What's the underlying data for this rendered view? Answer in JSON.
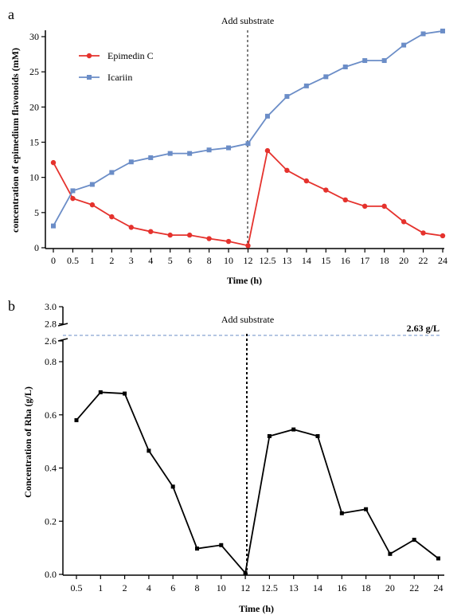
{
  "chart_data": [
    {
      "panel": "a",
      "type": "line",
      "title": "",
      "xlabel": "Time (h)",
      "ylabel": "concentration of  epimedium flavonoids (mM)",
      "categories": [
        "0",
        "0.5",
        "1",
        "2",
        "3",
        "4",
        "5",
        "6",
        "8",
        "10",
        "12",
        "12.5",
        "13",
        "14",
        "15",
        "16",
        "17",
        "18",
        "20",
        "22",
        "24"
      ],
      "ylim": [
        0,
        30
      ],
      "yticks": [
        0,
        5,
        10,
        15,
        20,
        25,
        30
      ],
      "legend_position": "top-left",
      "annotation": "Add substrate",
      "substrate_at": "12",
      "series": [
        {
          "name": "Epimedin C",
          "color": "#e5322d",
          "marker": "circle",
          "values": [
            12.1,
            7.0,
            6.1,
            4.4,
            2.9,
            2.3,
            1.8,
            1.8,
            1.3,
            0.9,
            0.3,
            13.8,
            11.0,
            9.5,
            8.2,
            6.8,
            5.9,
            5.9,
            3.7,
            2.1,
            1.7
          ]
        },
        {
          "name": "Icariin",
          "color": "#6b8dc7",
          "marker": "square",
          "values": [
            3.1,
            8.1,
            9.0,
            10.7,
            12.2,
            12.8,
            13.4,
            13.4,
            13.9,
            14.2,
            14.8,
            18.7,
            21.5,
            23.0,
            24.3,
            25.7,
            26.6,
            26.6,
            28.8,
            30.4,
            30.8
          ]
        }
      ]
    },
    {
      "panel": "b",
      "type": "line",
      "title": "",
      "xlabel": "Time (h)",
      "ylabel": "Concentration of Rha (g/L)",
      "categories": [
        "0.5",
        "1",
        "2",
        "4",
        "6",
        "8",
        "10",
        "12",
        "12.5",
        "13",
        "14",
        "16",
        "18",
        "20",
        "22",
        "24"
      ],
      "ylim_lower": [
        0,
        0.8
      ],
      "yticks_lower": [
        "0.0",
        "0.2",
        "0.4",
        "0.6",
        "0.8"
      ],
      "ylim_upper": [
        2.6,
        3.0
      ],
      "yticks_upper": [
        "2.6",
        "2.8",
        "3.0"
      ],
      "axis_break": true,
      "annotation": "Add substrate",
      "substrate_at": "12",
      "reference_value": 2.63,
      "reference_label": "2.63 g/L",
      "series": [
        {
          "color": "#000000",
          "marker": "square",
          "values": [
            0.58,
            0.685,
            0.68,
            0.465,
            0.33,
            0.097,
            0.11,
            0.005,
            0.52,
            0.545,
            0.52,
            0.23,
            0.245,
            0.077,
            0.13,
            0.06
          ]
        }
      ]
    }
  ]
}
